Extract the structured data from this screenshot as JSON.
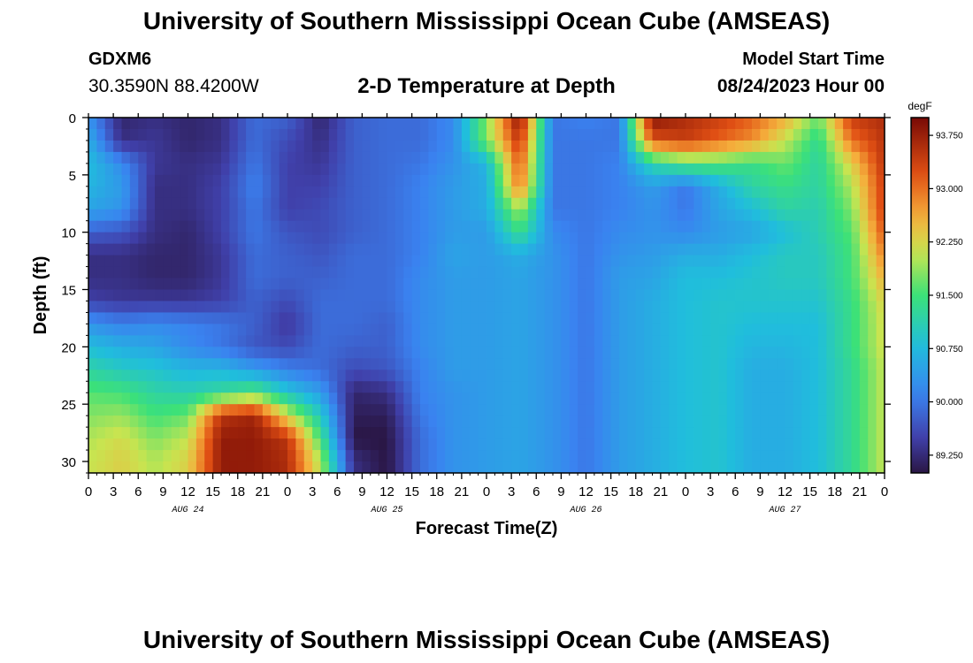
{
  "header": {
    "title": "University of Southern Mississippi Ocean Cube (AMSEAS)",
    "station": "GDXM6",
    "latlon": "30.3590N  88.4200W",
    "subtitle": "2-D Temperature at Depth",
    "model_start_label": "Model Start Time",
    "model_start_value": "08/24/2023 Hour 00"
  },
  "footer": {
    "title": "University of Southern Mississippi Ocean Cube (AMSEAS)"
  },
  "chart_data": {
    "type": "heatmap",
    "title": "2-D Temperature at Depth",
    "xlabel": "Forecast Time(Z)",
    "ylabel": "Depth (ft)",
    "x_unit": "hours from model start",
    "x_range": [
      0,
      96
    ],
    "y_range": [
      0,
      31
    ],
    "y_inverted": true,
    "x_tick_labels": [
      "0",
      "3",
      "6",
      "9",
      "12",
      "15",
      "18",
      "21",
      "0",
      "3",
      "6",
      "9",
      "12",
      "15",
      "18",
      "21",
      "0",
      "3",
      "6",
      "9",
      "12",
      "15",
      "18",
      "21",
      "0",
      "3",
      "6",
      "9",
      "12",
      "15",
      "18",
      "21",
      "0"
    ],
    "y_ticks": [
      0,
      5,
      10,
      15,
      20,
      25,
      30
    ],
    "day_labels": [
      {
        "label": "AUG 24",
        "hour": 12
      },
      {
        "label": "AUG 25",
        "hour": 36
      },
      {
        "label": "AUG 26",
        "hour": 60
      },
      {
        "label": "AUG 27",
        "hour": 84
      }
    ],
    "colorbar": {
      "unit": "degF",
      "min": 89.0,
      "max": 94.0,
      "ticks": [
        "93.750",
        "93.000",
        "92.250",
        "91.500",
        "90.750",
        "90.000",
        "89.250"
      ],
      "tick_values": [
        93.75,
        93.0,
        92.25,
        91.5,
        90.75,
        90.0,
        89.25
      ]
    },
    "hours": [
      0,
      4,
      8,
      12,
      16,
      20,
      24,
      28,
      32,
      36,
      40,
      44,
      48,
      52,
      56,
      60,
      64,
      68,
      72,
      76,
      80,
      84,
      88,
      92,
      96
    ],
    "depths": [
      0,
      2,
      4,
      6,
      8,
      10,
      12,
      14,
      16,
      18,
      20,
      22,
      24,
      26,
      28,
      30,
      31
    ],
    "values": [
      [
        90.3,
        89.2,
        89.3,
        89.2,
        89.3,
        89.9,
        89.8,
        89.2,
        89.8,
        89.9,
        89.9,
        90.2,
        91.8,
        93.9,
        90.0,
        90.1,
        90.0,
        93.9,
        93.6,
        93.4,
        93.1,
        92.6,
        91.7,
        93.4,
        93.6
      ],
      [
        90.6,
        89.3,
        89.4,
        89.2,
        89.3,
        89.9,
        89.6,
        89.3,
        89.8,
        89.9,
        89.9,
        90.2,
        91.8,
        93.5,
        90.0,
        90.0,
        90.0,
        93.2,
        93.4,
        93.1,
        92.8,
        92.1,
        91.3,
        93.0,
        93.5
      ],
      [
        90.8,
        90.2,
        89.4,
        89.3,
        89.4,
        90.0,
        89.5,
        89.4,
        89.8,
        89.9,
        90.0,
        90.3,
        90.7,
        93.2,
        90.0,
        90.0,
        90.1,
        91.2,
        91.6,
        91.6,
        91.4,
        91.7,
        91.2,
        92.3,
        93.5
      ],
      [
        90.7,
        90.4,
        89.3,
        89.3,
        89.5,
        90.1,
        89.5,
        89.5,
        89.8,
        89.9,
        90.1,
        90.4,
        90.6,
        93.0,
        90.0,
        90.0,
        90.1,
        90.4,
        90.0,
        90.6,
        91.2,
        91.4,
        91.2,
        92.0,
        93.4
      ],
      [
        90.5,
        90.3,
        89.3,
        89.3,
        89.5,
        90.0,
        89.5,
        89.6,
        89.8,
        89.9,
        90.1,
        90.4,
        90.6,
        92.0,
        90.0,
        90.0,
        90.1,
        90.3,
        90.0,
        90.5,
        90.8,
        91.2,
        91.1,
        91.8,
        93.4
      ],
      [
        89.8,
        89.7,
        89.3,
        89.2,
        89.5,
        90.0,
        89.7,
        89.6,
        89.8,
        89.9,
        90.1,
        90.4,
        90.4,
        91.4,
        90.2,
        90.0,
        90.2,
        90.3,
        90.2,
        90.4,
        90.5,
        90.8,
        91.1,
        91.6,
        93.2
      ],
      [
        89.3,
        89.3,
        89.2,
        89.2,
        89.4,
        89.9,
        89.8,
        89.7,
        89.9,
        89.9,
        90.1,
        90.5,
        90.4,
        90.6,
        90.3,
        90.0,
        90.3,
        90.4,
        90.6,
        90.6,
        90.8,
        91.0,
        91.0,
        91.5,
        92.9
      ],
      [
        89.3,
        89.3,
        89.2,
        89.2,
        89.4,
        89.9,
        89.8,
        89.8,
        89.9,
        89.9,
        90.2,
        90.4,
        90.4,
        90.5,
        90.3,
        90.0,
        90.4,
        90.5,
        90.8,
        90.8,
        90.9,
        91.0,
        91.0,
        91.5,
        92.6
      ],
      [
        89.5,
        89.4,
        89.4,
        89.4,
        89.5,
        89.8,
        89.6,
        89.9,
        89.9,
        89.9,
        90.2,
        90.4,
        90.4,
        90.5,
        90.3,
        90.0,
        90.4,
        90.6,
        90.8,
        90.9,
        90.9,
        90.9,
        90.9,
        91.4,
        92.3
      ],
      [
        90.3,
        90.1,
        90.2,
        90.1,
        90.0,
        89.8,
        89.4,
        89.9,
        89.9,
        89.8,
        90.2,
        90.4,
        90.4,
        90.5,
        90.3,
        90.0,
        90.4,
        90.6,
        90.8,
        90.9,
        90.8,
        90.8,
        90.8,
        91.4,
        92.2
      ],
      [
        90.8,
        90.6,
        90.5,
        90.2,
        90.0,
        89.7,
        89.6,
        89.9,
        89.8,
        89.8,
        90.2,
        90.4,
        90.4,
        90.5,
        90.3,
        90.0,
        90.4,
        90.6,
        90.8,
        90.9,
        90.7,
        90.7,
        90.8,
        91.4,
        92.2
      ],
      [
        91.2,
        91.0,
        90.9,
        90.7,
        90.7,
        90.4,
        90.1,
        89.9,
        89.6,
        89.7,
        90.1,
        90.4,
        90.4,
        90.5,
        90.3,
        90.0,
        90.4,
        90.6,
        90.8,
        90.9,
        90.6,
        90.6,
        90.8,
        91.3,
        92.1
      ],
      [
        91.6,
        91.5,
        91.2,
        91.1,
        91.3,
        91.6,
        90.9,
        90.4,
        89.2,
        89.3,
        90.1,
        90.3,
        90.4,
        90.5,
        90.3,
        90.0,
        90.4,
        90.6,
        90.8,
        90.9,
        90.6,
        90.6,
        90.8,
        91.3,
        92.1
      ],
      [
        91.8,
        91.9,
        91.5,
        91.7,
        93.5,
        93.7,
        92.2,
        91.0,
        89.1,
        89.1,
        90.0,
        90.3,
        90.4,
        90.5,
        90.3,
        90.0,
        90.4,
        90.6,
        90.8,
        90.9,
        90.6,
        90.6,
        90.8,
        91.3,
        92.1
      ],
      [
        92.0,
        92.2,
        91.8,
        92.1,
        93.8,
        93.8,
        93.5,
        91.5,
        89.0,
        89.0,
        89.9,
        90.3,
        90.4,
        90.5,
        90.3,
        90.0,
        90.4,
        90.6,
        90.8,
        90.9,
        90.6,
        90.6,
        90.8,
        91.3,
        92.1
      ],
      [
        92.1,
        92.3,
        92.0,
        92.3,
        93.8,
        93.8,
        93.6,
        92.0,
        89.3,
        89.0,
        89.9,
        90.3,
        90.4,
        90.5,
        90.3,
        90.0,
        90.4,
        90.6,
        90.8,
        90.9,
        90.6,
        90.6,
        90.8,
        91.3,
        92.1
      ],
      [
        92.1,
        92.3,
        92.0,
        92.3,
        93.8,
        93.8,
        93.6,
        92.0,
        89.3,
        89.0,
        89.9,
        90.3,
        90.4,
        90.5,
        90.3,
        90.0,
        90.4,
        90.6,
        90.8,
        90.9,
        90.6,
        90.6,
        90.8,
        91.3,
        92.1
      ]
    ]
  }
}
